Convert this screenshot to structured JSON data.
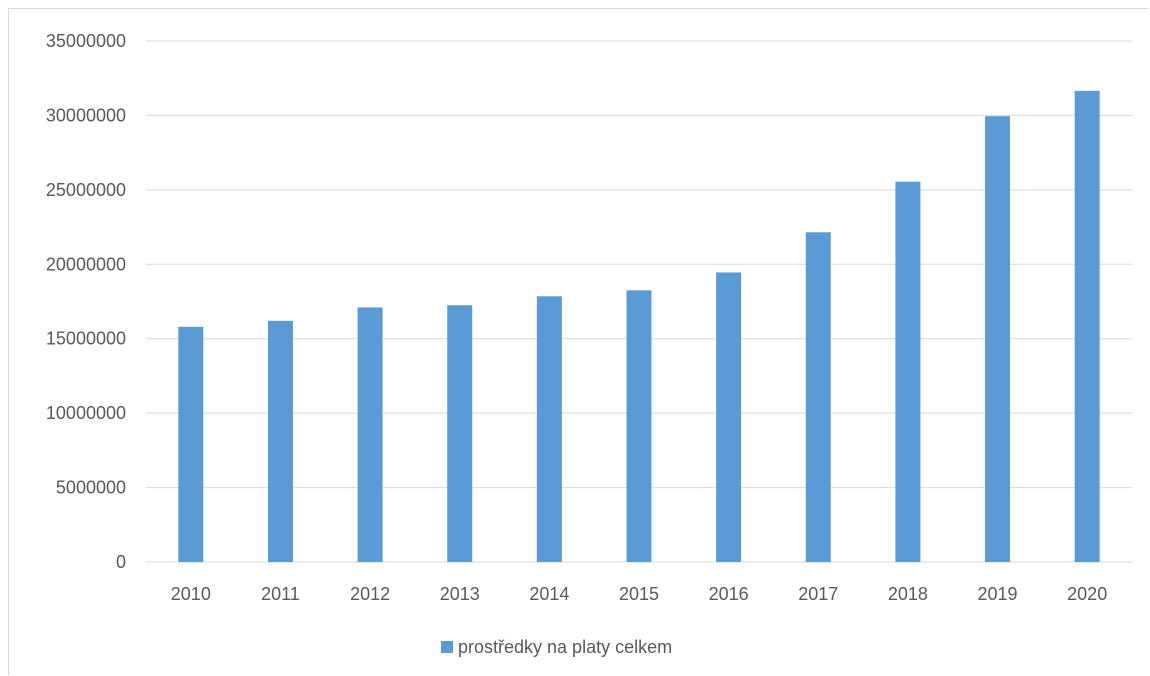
{
  "chart_data": {
    "type": "bar",
    "categories": [
      "2010",
      "2011",
      "2012",
      "2013",
      "2014",
      "2015",
      "2016",
      "2017",
      "2018",
      "2019",
      "2020"
    ],
    "series": [
      {
        "name": "prostředky na platy celkem",
        "values": [
          15800000,
          16200000,
          17100000,
          17250000,
          17850000,
          18250000,
          19450000,
          22150000,
          25550000,
          29950000,
          31650000
        ],
        "color": "#5b9bd5"
      }
    ],
    "yticks": [
      "0",
      "5000000",
      "10000000",
      "15000000",
      "20000000",
      "25000000",
      "30000000",
      "35000000"
    ],
    "ylim": [
      0,
      35000000
    ],
    "grid": true,
    "legend_position": "bottom",
    "title": "",
    "xlabel": "",
    "ylabel": ""
  }
}
